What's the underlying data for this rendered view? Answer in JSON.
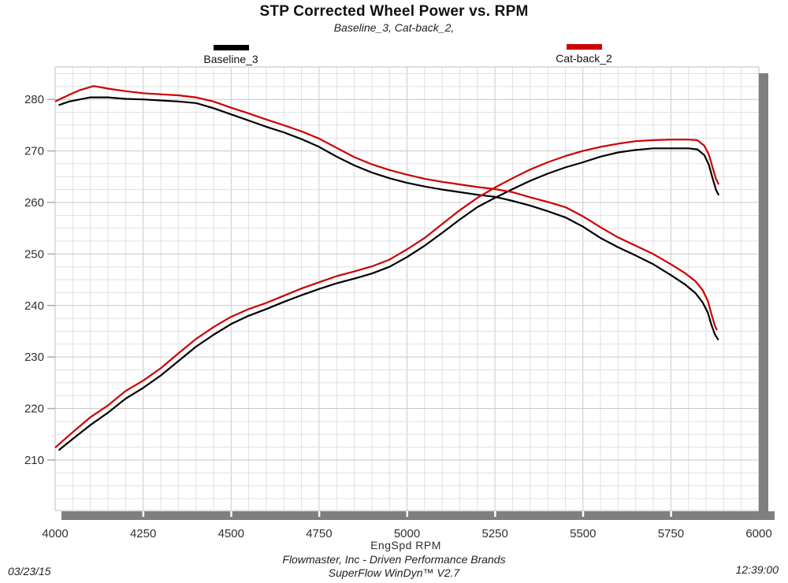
{
  "header": {
    "title": "STP Corrected Wheel Power vs. RPM",
    "subtitle": "Baseline_3, Cat-back_2,"
  },
  "legend": {
    "items": [
      {
        "label": "Baseline_3",
        "color": "#000000"
      },
      {
        "label": "Cat-back_2",
        "color": "#cc0000"
      }
    ]
  },
  "footer": {
    "company": "Flowmaster, Inc - Driven Performance Brands",
    "software": "SuperFlow WinDyn™ V2.7",
    "date": "03/23/15",
    "time": "12:39:00"
  },
  "chart_data": {
    "type": "line",
    "title": "STP Corrected Wheel Power vs. RPM",
    "subtitle": "Baseline_3, Cat-back_2,",
    "xlabel": "EngSpd RPM",
    "ylabel": "",
    "xlim": [
      4000,
      6000
    ],
    "ylim": [
      200.2,
      286.3
    ],
    "x_ticks": [
      4000,
      4250,
      4500,
      4750,
      5000,
      5250,
      5500,
      5750,
      6000
    ],
    "y_ticks": [
      210,
      220,
      230,
      240,
      250,
      260,
      270,
      280
    ],
    "minor_x_step": 50,
    "minor_y_step": 2.5,
    "grid": "on",
    "legend_position": "top",
    "colors": {
      "baseline": "#000000",
      "catback": "#cc0000",
      "grid_minor": "#e0e0e0",
      "grid_major": "#c9c9c9",
      "frame": "#c2c2c2",
      "shadow": "#7f7f7f",
      "tick_text": "#2f2f2f"
    },
    "series": [
      {
        "name": "Baseline_3",
        "curve": "torque",
        "color": "#000000",
        "points": [
          [
            4010,
            278.9
          ],
          [
            4040,
            279.6
          ],
          [
            4100,
            280.4
          ],
          [
            4150,
            280.4
          ],
          [
            4200,
            280.1
          ],
          [
            4250,
            280.0
          ],
          [
            4300,
            279.8
          ],
          [
            4350,
            279.6
          ],
          [
            4400,
            279.3
          ],
          [
            4450,
            278.3
          ],
          [
            4500,
            277.1
          ],
          [
            4550,
            275.9
          ],
          [
            4600,
            274.7
          ],
          [
            4650,
            273.6
          ],
          [
            4700,
            272.3
          ],
          [
            4750,
            270.8
          ],
          [
            4800,
            268.9
          ],
          [
            4850,
            267.2
          ],
          [
            4900,
            265.8
          ],
          [
            4950,
            264.7
          ],
          [
            5000,
            263.8
          ],
          [
            5050,
            263.1
          ],
          [
            5100,
            262.5
          ],
          [
            5150,
            262.0
          ],
          [
            5200,
            261.5
          ],
          [
            5250,
            261.1
          ],
          [
            5300,
            260.3
          ],
          [
            5350,
            259.4
          ],
          [
            5400,
            258.3
          ],
          [
            5450,
            257.1
          ],
          [
            5500,
            255.3
          ],
          [
            5550,
            253.1
          ],
          [
            5600,
            251.3
          ],
          [
            5650,
            249.7
          ],
          [
            5700,
            248.0
          ],
          [
            5750,
            245.9
          ],
          [
            5790,
            244.1
          ],
          [
            5820,
            242.4
          ],
          [
            5840,
            240.6
          ],
          [
            5855,
            238.6
          ],
          [
            5865,
            236.3
          ],
          [
            5875,
            234.4
          ],
          [
            5885,
            233.3
          ]
        ]
      },
      {
        "name": "Baseline_3",
        "curve": "power",
        "color": "#000000",
        "points": [
          [
            4010,
            211.9
          ],
          [
            4050,
            214.1
          ],
          [
            4100,
            216.8
          ],
          [
            4150,
            219.2
          ],
          [
            4200,
            221.9
          ],
          [
            4250,
            224.0
          ],
          [
            4300,
            226.4
          ],
          [
            4350,
            229.2
          ],
          [
            4400,
            232.0
          ],
          [
            4450,
            234.3
          ],
          [
            4500,
            236.4
          ],
          [
            4550,
            238.0
          ],
          [
            4600,
            239.3
          ],
          [
            4650,
            240.7
          ],
          [
            4700,
            242.0
          ],
          [
            4750,
            243.2
          ],
          [
            4800,
            244.3
          ],
          [
            4850,
            245.2
          ],
          [
            4900,
            246.2
          ],
          [
            4950,
            247.5
          ],
          [
            5000,
            249.4
          ],
          [
            5050,
            251.6
          ],
          [
            5100,
            254.1
          ],
          [
            5150,
            256.7
          ],
          [
            5200,
            259.1
          ],
          [
            5250,
            260.9
          ],
          [
            5300,
            262.6
          ],
          [
            5350,
            264.2
          ],
          [
            5400,
            265.6
          ],
          [
            5450,
            266.8
          ],
          [
            5500,
            267.8
          ],
          [
            5550,
            268.9
          ],
          [
            5600,
            269.7
          ],
          [
            5650,
            270.2
          ],
          [
            5700,
            270.5
          ],
          [
            5750,
            270.5
          ],
          [
            5800,
            270.5
          ],
          [
            5825,
            270.3
          ],
          [
            5845,
            269.2
          ],
          [
            5858,
            267.3
          ],
          [
            5868,
            264.8
          ],
          [
            5878,
            262.5
          ],
          [
            5886,
            261.4
          ]
        ]
      },
      {
        "name": "Cat-back_2",
        "curve": "torque",
        "color": "#cc0000",
        "points": [
          [
            4000,
            279.6
          ],
          [
            4040,
            280.9
          ],
          [
            4070,
            281.8
          ],
          [
            4110,
            282.6
          ],
          [
            4150,
            282.1
          ],
          [
            4200,
            281.6
          ],
          [
            4250,
            281.2
          ],
          [
            4300,
            281.0
          ],
          [
            4350,
            280.8
          ],
          [
            4400,
            280.4
          ],
          [
            4450,
            279.6
          ],
          [
            4500,
            278.4
          ],
          [
            4550,
            277.3
          ],
          [
            4600,
            276.1
          ],
          [
            4650,
            275.0
          ],
          [
            4700,
            273.8
          ],
          [
            4750,
            272.4
          ],
          [
            4800,
            270.6
          ],
          [
            4850,
            268.8
          ],
          [
            4900,
            267.4
          ],
          [
            4950,
            266.3
          ],
          [
            5000,
            265.4
          ],
          [
            5050,
            264.6
          ],
          [
            5100,
            264.0
          ],
          [
            5150,
            263.5
          ],
          [
            5200,
            263.0
          ],
          [
            5250,
            262.6
          ],
          [
            5300,
            262.0
          ],
          [
            5350,
            261.0
          ],
          [
            5400,
            260.1
          ],
          [
            5450,
            259.1
          ],
          [
            5500,
            257.3
          ],
          [
            5550,
            255.2
          ],
          [
            5600,
            253.2
          ],
          [
            5650,
            251.6
          ],
          [
            5700,
            250.0
          ],
          [
            5750,
            248.0
          ],
          [
            5790,
            246.3
          ],
          [
            5820,
            244.7
          ],
          [
            5840,
            243.0
          ],
          [
            5855,
            240.9
          ],
          [
            5865,
            238.4
          ],
          [
            5875,
            236.1
          ],
          [
            5881,
            235.2
          ]
        ]
      },
      {
        "name": "Cat-back_2",
        "curve": "power",
        "color": "#cc0000",
        "points": [
          [
            4000,
            212.4
          ],
          [
            4050,
            215.4
          ],
          [
            4100,
            218.3
          ],
          [
            4150,
            220.6
          ],
          [
            4200,
            223.4
          ],
          [
            4250,
            225.4
          ],
          [
            4300,
            227.8
          ],
          [
            4350,
            230.7
          ],
          [
            4400,
            233.5
          ],
          [
            4450,
            235.8
          ],
          [
            4500,
            237.8
          ],
          [
            4550,
            239.3
          ],
          [
            4600,
            240.5
          ],
          [
            4650,
            241.9
          ],
          [
            4700,
            243.3
          ],
          [
            4750,
            244.5
          ],
          [
            4800,
            245.7
          ],
          [
            4850,
            246.6
          ],
          [
            4900,
            247.6
          ],
          [
            4950,
            248.9
          ],
          [
            5000,
            250.9
          ],
          [
            5050,
            253.1
          ],
          [
            5100,
            255.8
          ],
          [
            5150,
            258.5
          ],
          [
            5200,
            260.9
          ],
          [
            5250,
            262.9
          ],
          [
            5300,
            264.7
          ],
          [
            5350,
            266.4
          ],
          [
            5400,
            267.8
          ],
          [
            5450,
            269.0
          ],
          [
            5500,
            270.0
          ],
          [
            5550,
            270.8
          ],
          [
            5600,
            271.4
          ],
          [
            5650,
            271.9
          ],
          [
            5700,
            272.1
          ],
          [
            5750,
            272.2
          ],
          [
            5800,
            272.2
          ],
          [
            5825,
            272.1
          ],
          [
            5845,
            271.0
          ],
          [
            5858,
            269.3
          ],
          [
            5868,
            266.9
          ],
          [
            5878,
            264.6
          ],
          [
            5886,
            263.5
          ]
        ]
      }
    ]
  }
}
